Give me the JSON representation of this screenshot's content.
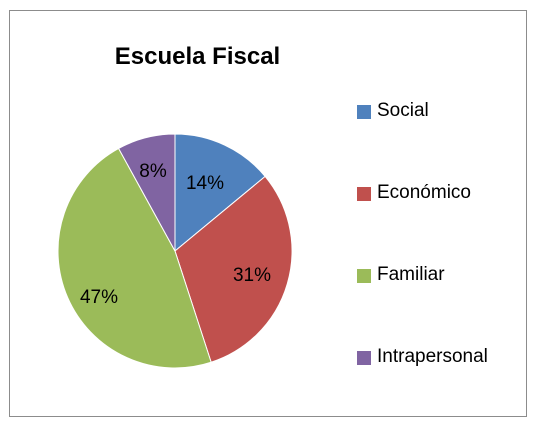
{
  "chart_data": {
    "type": "pie",
    "title": "Escuela Fiscal",
    "categories": [
      "Social",
      "Económico",
      "Familiar",
      "Intrapersonal"
    ],
    "values": [
      14,
      31,
      47,
      8
    ],
    "labels": [
      "14%",
      "31%",
      "47%",
      "8%"
    ],
    "colors": [
      "#4f81bd",
      "#c0504d",
      "#9bbb59",
      "#8064a2"
    ],
    "legend_position": "right",
    "start_angle": "12 o'clock",
    "direction": "clockwise"
  }
}
